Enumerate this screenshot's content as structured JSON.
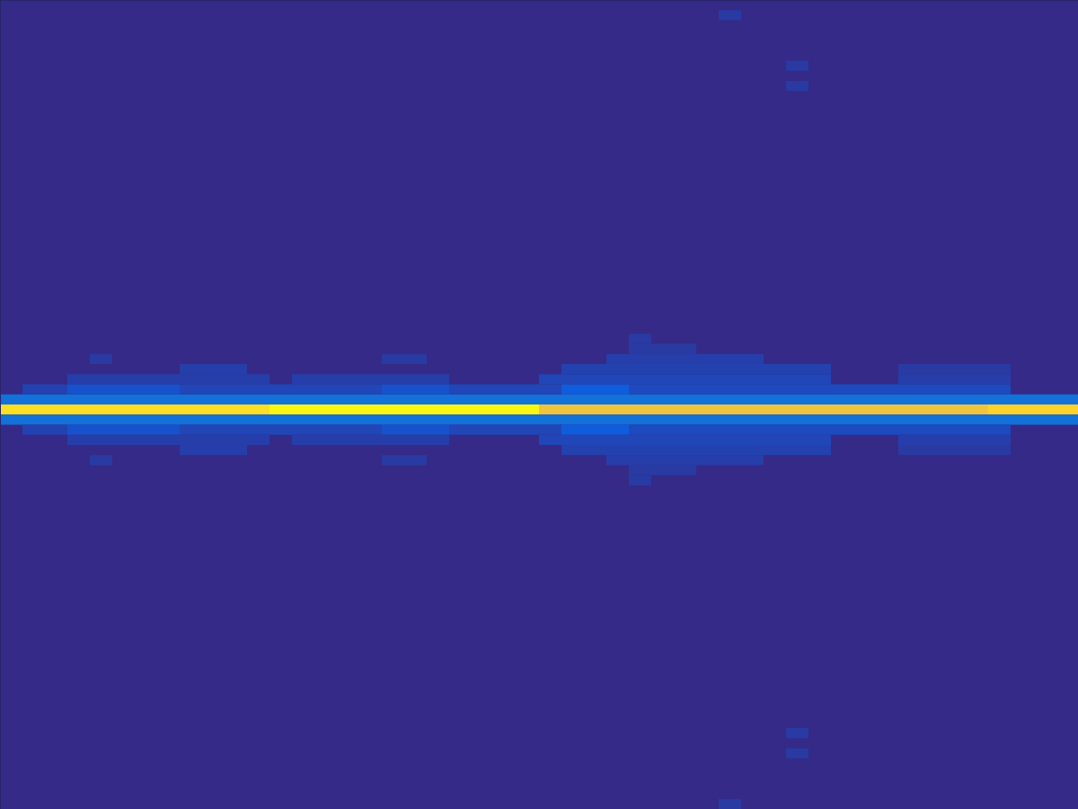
{
  "chart_data": {
    "type": "heatmap",
    "tick_labels": false,
    "xlim": [
      0,
      48
    ],
    "ylim": [
      0,
      80
    ],
    "zlim": [
      0,
      1
    ],
    "cells": [
      {
        "row": 40,
        "cols": [
          0,
          12
        ],
        "value": 0.93
      },
      {
        "row": 40,
        "cols": [
          12,
          24
        ],
        "value": 0.99
      },
      {
        "row": 40,
        "cols": [
          24,
          44
        ],
        "value": 0.84
      },
      {
        "row": 40,
        "cols": [
          44,
          48
        ],
        "value": 0.9
      },
      {
        "row": 39,
        "cols": [
          0,
          48
        ],
        "value": 0.2
      },
      {
        "row": 41,
        "cols": [
          0,
          48
        ],
        "value": 0.2
      },
      {
        "row": 38,
        "cols": [
          1,
          3
        ],
        "value": 0.06
      },
      {
        "row": 38,
        "cols": [
          3,
          8
        ],
        "value": 0.1
      },
      {
        "row": 38,
        "cols": [
          8,
          17
        ],
        "value": 0.07
      },
      {
        "row": 38,
        "cols": [
          17,
          20
        ],
        "value": 0.1
      },
      {
        "row": 38,
        "cols": [
          20,
          25
        ],
        "value": 0.07
      },
      {
        "row": 38,
        "cols": [
          25,
          28
        ],
        "value": 0.13
      },
      {
        "row": 38,
        "cols": [
          28,
          45
        ],
        "value": 0.08
      },
      {
        "row": 42,
        "cols": [
          1,
          3
        ],
        "value": 0.06
      },
      {
        "row": 42,
        "cols": [
          3,
          8
        ],
        "value": 0.1
      },
      {
        "row": 42,
        "cols": [
          8,
          17
        ],
        "value": 0.07
      },
      {
        "row": 42,
        "cols": [
          17,
          20
        ],
        "value": 0.1
      },
      {
        "row": 42,
        "cols": [
          20,
          25
        ],
        "value": 0.07
      },
      {
        "row": 42,
        "cols": [
          25,
          28
        ],
        "value": 0.13
      },
      {
        "row": 42,
        "cols": [
          28,
          45
        ],
        "value": 0.08
      },
      {
        "row": 37,
        "cols": [
          3,
          12
        ],
        "value": 0.05
      },
      {
        "row": 37,
        "cols": [
          13,
          20
        ],
        "value": 0.05
      },
      {
        "row": 37,
        "cols": [
          24,
          37
        ],
        "value": 0.07
      },
      {
        "row": 37,
        "cols": [
          40,
          45
        ],
        "value": 0.05
      },
      {
        "row": 43,
        "cols": [
          3,
          12
        ],
        "value": 0.05
      },
      {
        "row": 43,
        "cols": [
          13,
          20
        ],
        "value": 0.05
      },
      {
        "row": 43,
        "cols": [
          24,
          37
        ],
        "value": 0.07
      },
      {
        "row": 43,
        "cols": [
          40,
          45
        ],
        "value": 0.05
      },
      {
        "row": 36,
        "cols": [
          8,
          11
        ],
        "value": 0.05
      },
      {
        "row": 36,
        "cols": [
          25,
          37
        ],
        "value": 0.06
      },
      {
        "row": 36,
        "cols": [
          40,
          45
        ],
        "value": 0.04
      },
      {
        "row": 44,
        "cols": [
          8,
          11
        ],
        "value": 0.05
      },
      {
        "row": 44,
        "cols": [
          25,
          37
        ],
        "value": 0.06
      },
      {
        "row": 44,
        "cols": [
          40,
          45
        ],
        "value": 0.04
      },
      {
        "row": 35,
        "cols": [
          4,
          5
        ],
        "value": 0.04
      },
      {
        "row": 35,
        "cols": [
          17,
          19
        ],
        "value": 0.04
      },
      {
        "row": 35,
        "cols": [
          27,
          34
        ],
        "value": 0.05
      },
      {
        "row": 45,
        "cols": [
          4,
          5
        ],
        "value": 0.04
      },
      {
        "row": 45,
        "cols": [
          17,
          19
        ],
        "value": 0.04
      },
      {
        "row": 45,
        "cols": [
          27,
          34
        ],
        "value": 0.05
      },
      {
        "row": 34,
        "cols": [
          28,
          31
        ],
        "value": 0.04
      },
      {
        "row": 46,
        "cols": [
          28,
          31
        ],
        "value": 0.04
      },
      {
        "row": 33,
        "cols": [
          28,
          29
        ],
        "value": 0.04
      },
      {
        "row": 47,
        "cols": [
          28,
          29
        ],
        "value": 0.04
      },
      {
        "row": 1,
        "cols": [
          32,
          33
        ],
        "value": 0.04
      },
      {
        "row": 6,
        "cols": [
          35,
          36
        ],
        "value": 0.04
      },
      {
        "row": 8,
        "cols": [
          35,
          36
        ],
        "value": 0.04
      },
      {
        "row": 72,
        "cols": [
          35,
          36
        ],
        "value": 0.04
      },
      {
        "row": 74,
        "cols": [
          35,
          36
        ],
        "value": 0.04
      },
      {
        "row": 79,
        "cols": [
          32,
          33
        ],
        "value": 0.04
      }
    ]
  }
}
